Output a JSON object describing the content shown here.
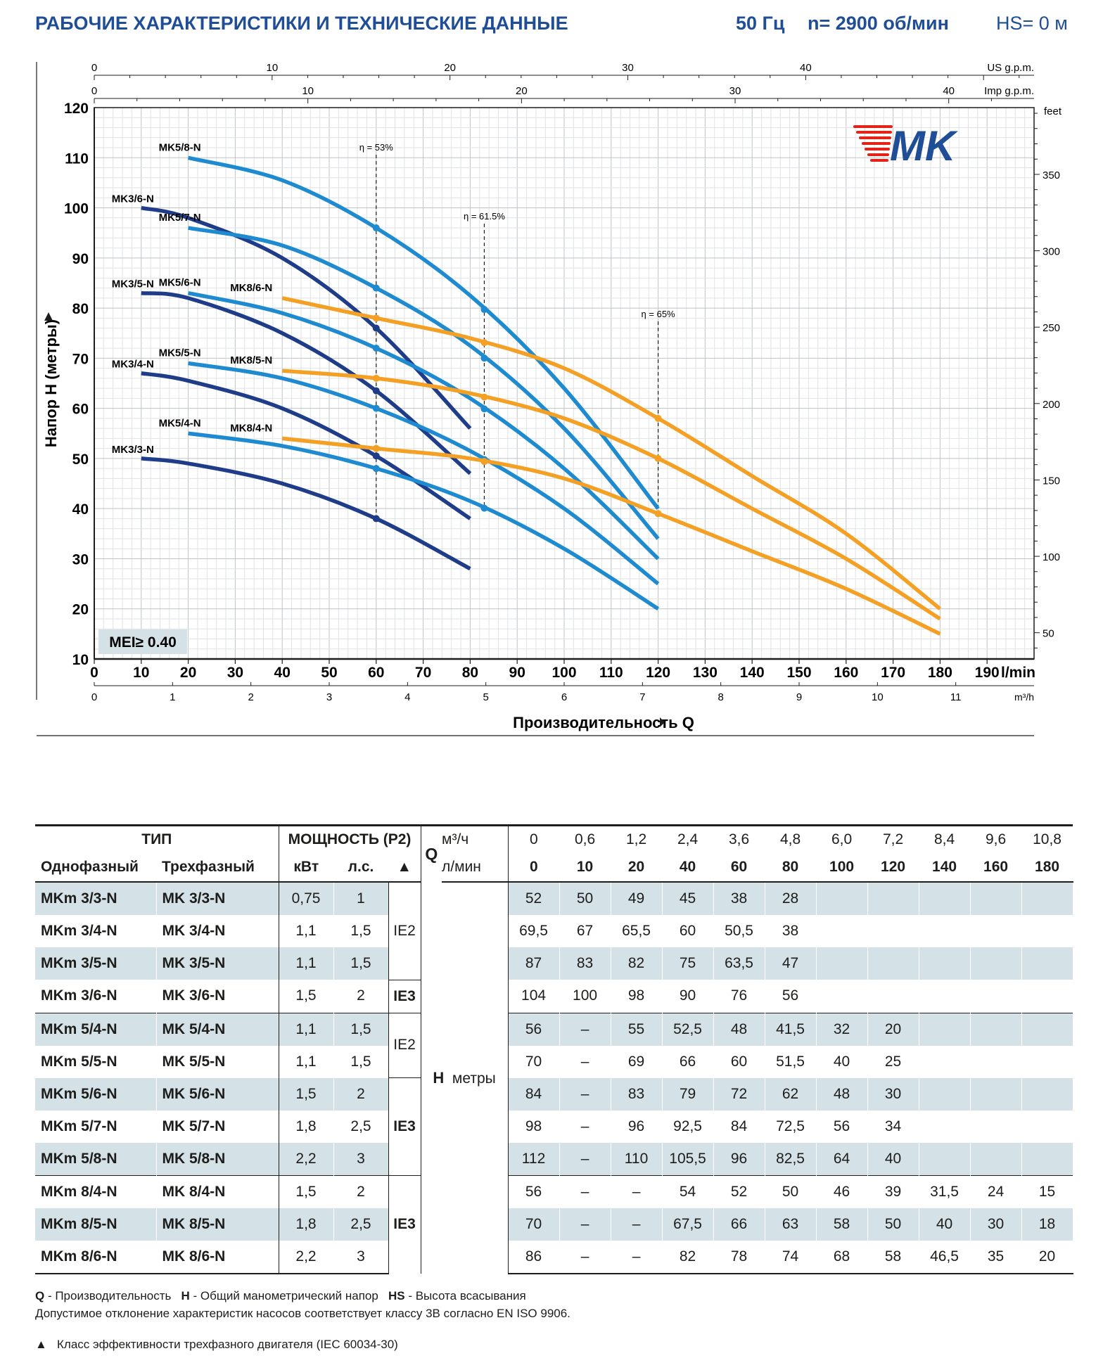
{
  "header": {
    "title": "РАБОЧИЕ ХАРАКТЕРИСТИКИ И ТЕХНИЧЕСКИЕ ДАННЫЕ",
    "frequency": "50 Гц",
    "speed": "n= 2900 об/мин",
    "suction": "HS= 0 м"
  },
  "logo": {
    "text": "MK",
    "color": "#1f4e96",
    "accent": "#e32219"
  },
  "chart_data": {
    "type": "line",
    "xlabel": "Производительность Q",
    "ylabel": "Напор H (метры)",
    "xlim": [
      0,
      200
    ],
    "ylim": [
      10,
      120
    ],
    "x_unit": "l/min",
    "x_ticks": [
      0,
      10,
      20,
      30,
      40,
      50,
      60,
      70,
      80,
      90,
      100,
      110,
      120,
      130,
      140,
      150,
      160,
      170,
      180,
      190
    ],
    "y_ticks": [
      10,
      20,
      30,
      40,
      50,
      60,
      70,
      80,
      90,
      100,
      110,
      120
    ],
    "grid": true,
    "secondary_axes": {
      "us_gpm": {
        "label": "US g.p.m.",
        "ticks": [
          0,
          10,
          20,
          30,
          40
        ]
      },
      "imp_gpm": {
        "label": "Imp g.p.m.",
        "ticks": [
          0,
          10,
          20,
          30,
          40
        ]
      },
      "m3h": {
        "label": "m³/h",
        "ticks": [
          0,
          1,
          2,
          3,
          4,
          5,
          6,
          7,
          8,
          9,
          10,
          11
        ]
      },
      "feet": {
        "label": "feet",
        "ticks": [
          50,
          100,
          150,
          200,
          250,
          300,
          350
        ]
      }
    },
    "colors": {
      "MK3": "#1f3c88",
      "MK5": "#1e8bd0",
      "MK8": "#f4a024"
    },
    "series": [
      {
        "name": "MK3/3-N",
        "group": "MK3",
        "x": [
          10,
          20,
          40,
          60,
          80
        ],
        "y": [
          50,
          49,
          45,
          38,
          28
        ]
      },
      {
        "name": "MK3/4-N",
        "group": "MK3",
        "x": [
          10,
          20,
          40,
          60,
          80
        ],
        "y": [
          67,
          65.5,
          60,
          50.5,
          38
        ]
      },
      {
        "name": "MK3/5-N",
        "group": "MK3",
        "x": [
          10,
          20,
          40,
          60,
          80
        ],
        "y": [
          83,
          82,
          75,
          63.5,
          47
        ]
      },
      {
        "name": "MK3/6-N",
        "group": "MK3",
        "x": [
          10,
          20,
          40,
          60,
          80
        ],
        "y": [
          100,
          98,
          90,
          76,
          56
        ]
      },
      {
        "name": "MK5/4-N",
        "group": "MK5",
        "x": [
          20,
          40,
          60,
          80,
          100,
          120
        ],
        "y": [
          55,
          52.5,
          48,
          41.5,
          32,
          20
        ]
      },
      {
        "name": "MK5/5-N",
        "group": "MK5",
        "x": [
          20,
          40,
          60,
          80,
          100,
          120
        ],
        "y": [
          69,
          66,
          60,
          51.5,
          40,
          25
        ]
      },
      {
        "name": "MK5/6-N",
        "group": "MK5",
        "x": [
          20,
          40,
          60,
          80,
          100,
          120
        ],
        "y": [
          83,
          79,
          72,
          62,
          48,
          30
        ]
      },
      {
        "name": "MK5/7-N",
        "group": "MK5",
        "x": [
          20,
          40,
          60,
          80,
          100,
          120
        ],
        "y": [
          96,
          92.5,
          84,
          72.5,
          56,
          34
        ]
      },
      {
        "name": "MK5/8-N",
        "group": "MK5",
        "x": [
          20,
          40,
          60,
          80,
          100,
          120
        ],
        "y": [
          110,
          105.5,
          96,
          82.5,
          64,
          40
        ]
      },
      {
        "name": "MK8/4-N",
        "group": "MK8",
        "x": [
          40,
          60,
          80,
          100,
          120,
          140,
          160,
          180
        ],
        "y": [
          54,
          52,
          50,
          46,
          39,
          31.5,
          24,
          15
        ]
      },
      {
        "name": "MK8/5-N",
        "group": "MK8",
        "x": [
          40,
          60,
          80,
          100,
          120,
          140,
          160,
          180
        ],
        "y": [
          67.5,
          66,
          63,
          58,
          50,
          40,
          30,
          18
        ]
      },
      {
        "name": "MK8/6-N",
        "group": "MK8",
        "x": [
          40,
          60,
          80,
          100,
          120,
          140,
          160,
          180
        ],
        "y": [
          82,
          78,
          74,
          68,
          58,
          46.5,
          35,
          20
        ]
      }
    ],
    "efficiency_lines": [
      {
        "label": "η = 53%",
        "x": 60
      },
      {
        "label": "η = 61.5%",
        "x": 83
      },
      {
        "label": "η = 65%",
        "x": 120
      }
    ],
    "badge": "MEI≥ 0.40"
  },
  "table": {
    "head": {
      "type": "ТИП",
      "power": "МОЩНОСТЬ (P2)",
      "q": "Q",
      "m3h_unit": "м³/ч",
      "lmin_unit": "л/мин",
      "single_phase": "Однофазный",
      "three_phase": "Трехфазный",
      "kw": "кВт",
      "hp": "л.с.",
      "tri": "▲",
      "h": "H",
      "h_unit": "метры",
      "q_m3h": [
        "0",
        "0,6",
        "1,2",
        "2,4",
        "3,6",
        "4,8",
        "6,0",
        "7,2",
        "8,4",
        "9,6",
        "10,8"
      ],
      "q_lmin": [
        "0",
        "10",
        "20",
        "40",
        "60",
        "80",
        "100",
        "120",
        "140",
        "160",
        "180"
      ]
    },
    "rows": [
      {
        "m": "MKm 3/3-N",
        "t": "MK 3/3-N",
        "kw": "0,75",
        "hp": "1",
        "h": [
          "52",
          "50",
          "49",
          "45",
          "38",
          "28",
          "",
          "",
          "",
          "",
          ""
        ]
      },
      {
        "m": "MKm 3/4-N",
        "t": "MK 3/4-N",
        "kw": "1,1",
        "hp": "1,5",
        "h": [
          "69,5",
          "67",
          "65,5",
          "60",
          "50,5",
          "38",
          "",
          "",
          "",
          "",
          ""
        ]
      },
      {
        "m": "MKm 3/5-N",
        "t": "MK 3/5-N",
        "kw": "1,1",
        "hp": "1,5",
        "h": [
          "87",
          "83",
          "82",
          "75",
          "63,5",
          "47",
          "",
          "",
          "",
          "",
          ""
        ]
      },
      {
        "m": "MKm 3/6-N",
        "t": "MK 3/6-N",
        "kw": "1,5",
        "hp": "2",
        "h": [
          "104",
          "100",
          "98",
          "90",
          "76",
          "56",
          "",
          "",
          "",
          "",
          ""
        ]
      },
      {
        "m": "MKm 5/4-N",
        "t": "MK 5/4-N",
        "kw": "1,1",
        "hp": "1,5",
        "h": [
          "56",
          "–",
          "55",
          "52,5",
          "48",
          "41,5",
          "32",
          "20",
          "",
          "",
          ""
        ]
      },
      {
        "m": "MKm 5/5-N",
        "t": "MK 5/5-N",
        "kw": "1,1",
        "hp": "1,5",
        "h": [
          "70",
          "–",
          "69",
          "66",
          "60",
          "51,5",
          "40",
          "25",
          "",
          "",
          ""
        ]
      },
      {
        "m": "MKm 5/6-N",
        "t": "MK 5/6-N",
        "kw": "1,5",
        "hp": "2",
        "h": [
          "84",
          "–",
          "83",
          "79",
          "72",
          "62",
          "48",
          "30",
          "",
          "",
          ""
        ]
      },
      {
        "m": "MKm 5/7-N",
        "t": "MK 5/7-N",
        "kw": "1,8",
        "hp": "2,5",
        "h": [
          "98",
          "–",
          "96",
          "92,5",
          "84",
          "72,5",
          "56",
          "34",
          "",
          "",
          ""
        ]
      },
      {
        "m": "MKm 5/8-N",
        "t": "MK 5/8-N",
        "kw": "2,2",
        "hp": "3",
        "h": [
          "112",
          "–",
          "110",
          "105,5",
          "96",
          "82,5",
          "64",
          "40",
          "",
          "",
          ""
        ]
      },
      {
        "m": "MKm 8/4-N",
        "t": "MK 8/4-N",
        "kw": "1,5",
        "hp": "2",
        "h": [
          "56",
          "–",
          "–",
          "54",
          "52",
          "50",
          "46",
          "39",
          "31,5",
          "24",
          "15"
        ]
      },
      {
        "m": "MKm 8/5-N",
        "t": "MK 8/5-N",
        "kw": "1,8",
        "hp": "2,5",
        "h": [
          "70",
          "–",
          "–",
          "67,5",
          "66",
          "63",
          "58",
          "50",
          "40",
          "30",
          "18"
        ]
      },
      {
        "m": "MKm 8/6-N",
        "t": "MK 8/6-N",
        "kw": "2,2",
        "hp": "3",
        "h": [
          "86",
          "–",
          "–",
          "82",
          "78",
          "74",
          "68",
          "58",
          "46,5",
          "35",
          "20"
        ]
      }
    ],
    "classes": [
      {
        "label": "IE2",
        "rows": 3,
        "bold": false
      },
      {
        "label": "IE3",
        "rows": 1,
        "bold": true
      },
      {
        "label": "IE2",
        "rows": 2,
        "bold": false
      },
      {
        "label": "IE3",
        "rows": 3,
        "bold": true
      },
      {
        "label": "IE3",
        "rows": 3,
        "bold": true
      }
    ]
  },
  "footer": {
    "q_key": "Q",
    "q_text": " - Производительность",
    "h_key": "H",
    "h_text": " - Общий манометрический напор",
    "hs_key": "HS",
    "hs_text": " - Высота всасывания",
    "tolerance": "Допустимое отклонение характеристик насосов соответствует классу 3B согласно EN ISO 9906.",
    "motor_icon": "▲",
    "motor_note": "Класс эффективности трехфазного двигателя (IEC 60034-30)"
  }
}
